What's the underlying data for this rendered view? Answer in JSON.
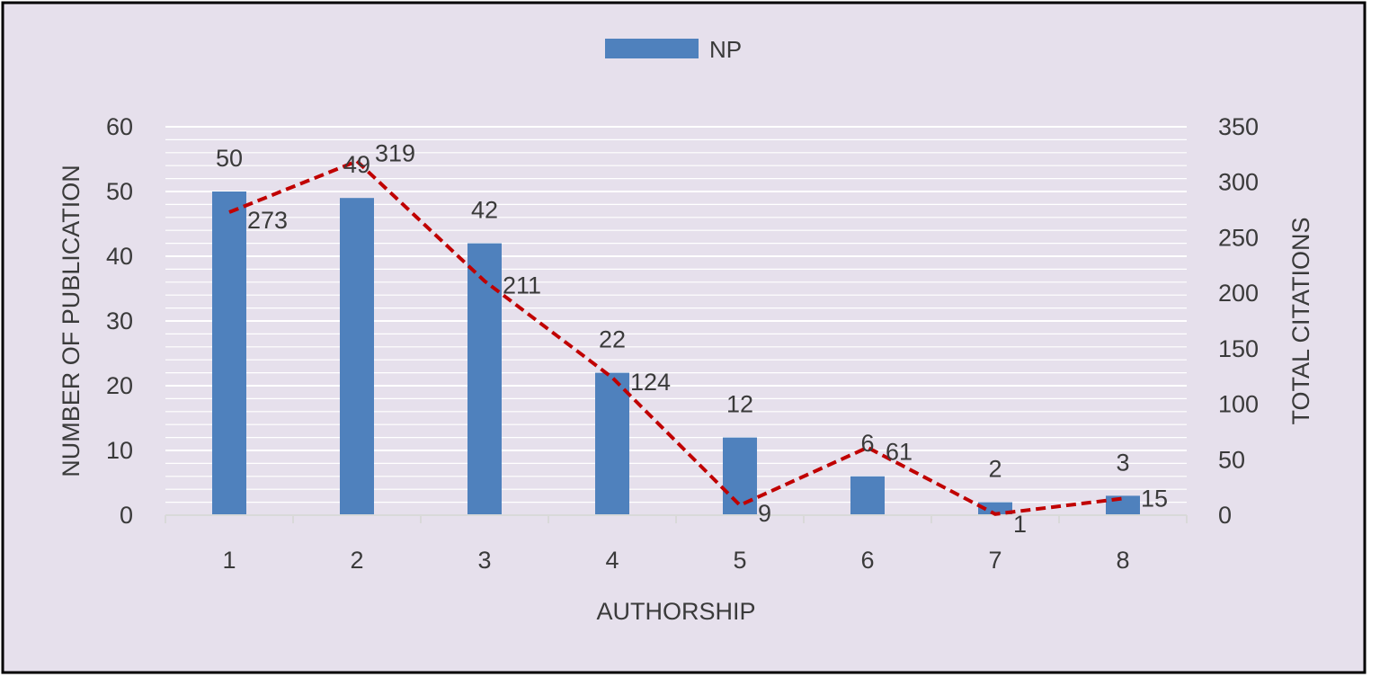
{
  "chart_data": {
    "type": "bar",
    "categories": [
      "1",
      "2",
      "3",
      "4",
      "5",
      "6",
      "7",
      "8"
    ],
    "xlabel": "AUTHORSHIP",
    "ylabel": "NUMBER OF PUBLICATION",
    "y2label": "TOTAL CITATIONS",
    "ylim": [
      0,
      60
    ],
    "y2lim": [
      0,
      350
    ],
    "yticks": [
      "0",
      "10",
      "20",
      "30",
      "40",
      "50",
      "60"
    ],
    "y2ticks": [
      "0",
      "50",
      "100",
      "150",
      "200",
      "250",
      "300",
      "350"
    ],
    "grid": true,
    "legend_position": "top-center",
    "series": [
      {
        "name": "NP",
        "type": "bar",
        "axis": "left",
        "color": "#4f81bd",
        "values": [
          50,
          49,
          42,
          22,
          12,
          6,
          2,
          3
        ],
        "labels": [
          "50",
          "49",
          "42",
          "22",
          "12",
          "6",
          "2",
          "3"
        ]
      },
      {
        "type": "line",
        "axis": "right",
        "style": "dashed",
        "color": "#c00000",
        "values": [
          273,
          319,
          211,
          124,
          9,
          61,
          1,
          15
        ],
        "labels": [
          "273",
          "319",
          "211",
          "124",
          "9",
          "61",
          "1",
          "15"
        ]
      }
    ],
    "background_color": "#e6e0ec",
    "border_color": "#000000"
  }
}
